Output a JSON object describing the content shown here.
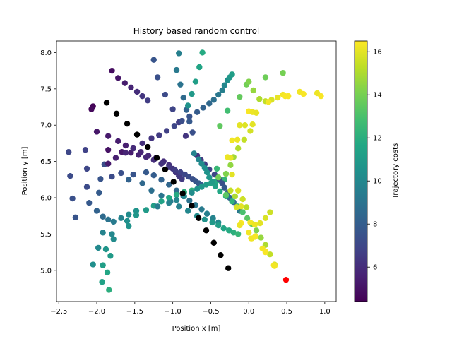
{
  "chart_data": {
    "type": "scatter",
    "title": "History based random control",
    "xlabel": "Position x [m]",
    "ylabel": "Position y [m]",
    "xlim": [
      -2.53,
      1.15
    ],
    "ylim": [
      4.57,
      8.16
    ],
    "xticks": [
      "−2.5",
      "−2.0",
      "−1.5",
      "−1.0",
      "−0.5",
      "0.0",
      "0.5",
      "1.0"
    ],
    "xtick_values": [
      -2.5,
      -2.0,
      -1.5,
      -1.0,
      -0.5,
      0.0,
      0.5,
      1.0
    ],
    "yticks": [
      "5.0",
      "5.5",
      "6.0",
      "6.5",
      "7.0",
      "7.5",
      "8.0"
    ],
    "ytick_values": [
      5.0,
      5.5,
      6.0,
      6.5,
      7.0,
      7.5,
      8.0
    ],
    "grid": false,
    "colorbar": {
      "label": "Trajectory costs",
      "colormap": "viridis",
      "range": [
        4.4,
        16.5
      ],
      "ticks": [
        "6",
        "8",
        "10",
        "12",
        "14",
        "16"
      ],
      "tick_values": [
        6,
        8,
        10,
        12,
        14,
        16
      ]
    },
    "colors": {
      "history": "#000000",
      "current": "#ff0000"
    },
    "current_position": {
      "x": 0.49,
      "y": 4.87
    },
    "history": [
      [
        -1.87,
        7.31
      ],
      [
        -1.74,
        7.16
      ],
      [
        -1.6,
        7.02
      ],
      [
        -1.47,
        6.87
      ],
      [
        -1.33,
        6.7
      ],
      [
        -1.21,
        6.55
      ],
      [
        -1.1,
        6.39
      ],
      [
        -0.99,
        6.22
      ],
      [
        -0.87,
        6.06
      ],
      [
        -0.75,
        5.89
      ],
      [
        -0.66,
        5.72
      ],
      [
        -0.56,
        5.55
      ],
      [
        -0.46,
        5.38
      ],
      [
        -0.37,
        5.21
      ],
      [
        -0.27,
        5.03
      ]
    ],
    "trajectories": [
      {
        "x": [
          -1.8,
          -1.72,
          -1.63,
          -1.55,
          -1.47,
          -1.4,
          -1.33
        ],
        "y": [
          7.75,
          7.65,
          7.58,
          7.52,
          7.46,
          7.4,
          7.34
        ],
        "costs": [
          4.8,
          5.1,
          5.4,
          5.7,
          6.0,
          6.3,
          6.6
        ]
      },
      {
        "x": [
          -2.05,
          -2.07
        ],
        "y": [
          7.26,
          7.22
        ],
        "costs": [
          4.5,
          4.7
        ]
      },
      {
        "x": [
          -1.25,
          -1.2,
          -1.1,
          -1.0,
          -0.92,
          -0.83
        ],
        "y": [
          7.9,
          7.66,
          7.42,
          7.22,
          7.04,
          6.85
        ],
        "costs": [
          7.6,
          7.4,
          7.2,
          6.9,
          6.6,
          6.3
        ]
      },
      {
        "x": [
          -0.92,
          -0.95,
          -0.9,
          -0.86,
          -0.82,
          -0.78,
          -0.74
        ],
        "y": [
          7.99,
          7.76,
          7.56,
          7.38,
          7.21,
          7.05,
          6.9
        ],
        "costs": [
          9.6,
          9.3,
          9.0,
          8.6,
          8.2,
          7.8,
          7.4
        ]
      },
      {
        "x": [
          -0.61,
          -0.65,
          -0.7,
          -0.75,
          -0.8
        ],
        "y": [
          8.0,
          7.8,
          7.6,
          7.43,
          7.27
        ],
        "costs": [
          11.8,
          11.5,
          11.2,
          10.9,
          10.6
        ]
      },
      {
        "x": [
          -2.0,
          -1.85,
          -1.72,
          -1.62,
          -1.52,
          -1.42,
          -1.32,
          -1.22,
          -1.12,
          -1.05,
          -1.0,
          -0.96,
          -0.92,
          -0.88
        ],
        "y": [
          6.91,
          6.85,
          6.78,
          6.72,
          6.68,
          6.63,
          6.58,
          6.55,
          6.5,
          6.45,
          6.4,
          6.35,
          6.3,
          6.26
        ],
        "costs": [
          5.2,
          5.3,
          5.4,
          5.5,
          5.6,
          5.7,
          5.8,
          5.9,
          6.0,
          6.1,
          6.2,
          6.3,
          6.4,
          6.5
        ]
      },
      {
        "x": [
          -1.85,
          -1.67,
          -1.55,
          -1.45,
          -1.35,
          -1.25,
          -1.15,
          -1.05,
          -0.97,
          -0.9,
          -0.84,
          -0.79,
          -0.74,
          -0.7,
          -0.66,
          -0.63
        ],
        "y": [
          6.66,
          6.63,
          6.62,
          6.59,
          6.56,
          6.52,
          6.47,
          6.42,
          6.38,
          6.35,
          6.32,
          6.29,
          6.26,
          6.23,
          6.2,
          6.18
        ],
        "costs": [
          5.0,
          5.2,
          5.4,
          5.6,
          5.8,
          6.0,
          6.2,
          6.4,
          6.6,
          6.8,
          7.0,
          7.2,
          7.4,
          7.6,
          7.8,
          8.0
        ]
      },
      {
        "x": [
          -2.37,
          -2.35,
          -2.32,
          -2.28
        ],
        "y": [
          6.63,
          6.3,
          5.99,
          5.73
        ],
        "costs": [
          7.0,
          7.2,
          7.4,
          7.6
        ]
      },
      {
        "x": [
          -2.15,
          -2.13,
          -2.13
        ],
        "y": [
          6.66,
          6.4,
          6.15
        ],
        "costs": [
          6.8,
          7.0,
          7.2
        ]
      },
      {
        "x": [
          -1.9,
          -1.95,
          -1.97
        ],
        "y": [
          6.46,
          6.26,
          6.07
        ],
        "costs": [
          7.3,
          7.6,
          7.9
        ]
      },
      {
        "x": [
          -1.8,
          -1.68
        ],
        "y": [
          6.29,
          6.34
        ],
        "costs": [
          7.2,
          7.4
        ]
      },
      {
        "x": [
          -1.52,
          -1.35,
          -1.25,
          -1.15,
          -1.05,
          -0.95,
          -0.86,
          -0.78,
          -0.7,
          -0.62,
          -0.55,
          -0.47,
          -0.4
        ],
        "y": [
          6.32,
          6.35,
          6.31,
          6.25,
          6.18,
          6.1,
          6.02,
          5.96,
          5.9,
          5.84,
          5.78,
          5.72,
          5.66
        ],
        "costs": [
          7.6,
          7.8,
          8.0,
          8.2,
          8.4,
          8.6,
          8.8,
          9.0,
          9.2,
          9.4,
          9.6,
          9.8,
          10.0
        ]
      },
      {
        "x": [
          -1.58,
          -1.4,
          -1.28,
          -1.15,
          -1.03,
          -0.92,
          -0.8,
          -0.68,
          -0.58,
          -0.48,
          -0.4,
          -0.33,
          -0.26,
          -0.2,
          -0.14
        ],
        "y": [
          6.25,
          6.2,
          6.1,
          6.03,
          5.95,
          5.88,
          5.82,
          5.75,
          5.7,
          5.66,
          5.62,
          5.58,
          5.55,
          5.52,
          5.5
        ],
        "costs": [
          8.2,
          8.5,
          8.8,
          9.1,
          9.4,
          9.7,
          10.0,
          10.3,
          10.6,
          10.9,
          11.2,
          11.5,
          11.8,
          12.1,
          12.4
        ]
      },
      {
        "x": [
          -2.1,
          -2.0,
          -1.92,
          -1.85,
          -1.78,
          -1.68,
          -1.58,
          -1.48
        ],
        "y": [
          5.93,
          5.82,
          5.74,
          5.7,
          5.67,
          5.72,
          5.77,
          5.82
        ],
        "costs": [
          7.8,
          8.2,
          8.6,
          9.0,
          9.4,
          9.8,
          10.2,
          10.6
        ]
      },
      {
        "x": [
          -1.8,
          -1.78,
          -1.6,
          -1.58,
          -1.48,
          -1.35,
          -1.25,
          -1.15,
          -1.05,
          -0.95,
          -0.85,
          -0.75
        ],
        "y": [
          5.5,
          5.43,
          5.68,
          5.61,
          5.76,
          5.83,
          5.89,
          5.95,
          6.0,
          6.04,
          6.08,
          6.1
        ],
        "costs": [
          10.0,
          10.2,
          10.4,
          10.6,
          10.8,
          11.0,
          11.2,
          11.4,
          11.6,
          11.8,
          12.0,
          12.2
        ]
      },
      {
        "x": [
          -1.92,
          -1.98,
          -2.05,
          -1.88,
          -1.82
        ],
        "y": [
          5.52,
          5.31,
          5.08,
          5.29,
          5.2
        ],
        "costs": [
          9.8,
          10.1,
          10.4,
          10.7,
          11.0
        ]
      },
      {
        "x": [
          -1.92,
          -1.86,
          -1.84,
          -1.93
        ],
        "y": [
          5.07,
          4.97,
          4.73,
          4.84
        ],
        "costs": [
          11.2,
          11.6,
          12.0,
          11.4
        ]
      },
      {
        "x": [
          -1.85,
          -1.75,
          -1.62,
          -1.52,
          -1.4,
          -1.28,
          -1.18,
          -1.08,
          -0.98,
          -0.88,
          -0.78,
          -0.68,
          -0.6,
          -0.52,
          -0.46,
          -0.4,
          -0.35,
          -0.32,
          -0.28,
          -0.25,
          -0.22
        ],
        "y": [
          6.47,
          6.55,
          6.62,
          6.68,
          6.75,
          6.82,
          6.86,
          6.92,
          6.99,
          7.06,
          7.12,
          7.18,
          7.24,
          7.3,
          7.35,
          7.42,
          7.48,
          7.55,
          7.62,
          7.66,
          7.7
        ],
        "costs": [
          5.3,
          5.5,
          5.7,
          5.9,
          6.1,
          6.3,
          6.5,
          6.7,
          7.0,
          7.3,
          7.6,
          7.9,
          8.2,
          8.5,
          8.8,
          9.2,
          9.6,
          10.0,
          10.4,
          10.8,
          11.2
        ]
      },
      {
        "x": [
          -1.2,
          -1.05,
          -0.95,
          -0.85,
          -0.75,
          -0.68,
          -0.62,
          -0.56,
          -0.5,
          -0.44,
          -0.38,
          -0.32
        ],
        "y": [
          5.88,
          5.93,
          5.97,
          6.02,
          6.07,
          6.12,
          6.15,
          6.18,
          6.2,
          6.22,
          6.24,
          6.25
        ],
        "costs": [
          9.5,
          9.7,
          9.9,
          10.1,
          10.3,
          10.5,
          10.8,
          11.1,
          11.4,
          11.7,
          12.0,
          12.3
        ]
      },
      {
        "x": [
          -0.68,
          -0.63,
          -0.58,
          -0.52,
          -0.45,
          -0.39,
          -0.35,
          -0.32,
          -0.28,
          -0.25,
          -0.2,
          -0.16,
          -0.12
        ],
        "y": [
          6.58,
          6.52,
          6.46,
          6.39,
          6.32,
          6.26,
          6.2,
          6.14,
          6.07,
          6.0,
          5.94,
          5.88,
          5.82
        ],
        "costs": [
          6.2,
          6.4,
          6.6,
          6.8,
          7.0,
          7.2,
          7.4,
          7.7,
          8.0,
          8.3,
          8.6,
          8.9,
          9.2
        ]
      },
      {
        "x": [
          -0.72,
          -0.66,
          -0.62,
          -0.58,
          -0.55,
          -0.52,
          -0.48,
          -0.44,
          -0.38,
          -0.3,
          -0.22,
          -0.15,
          -0.08,
          -0.02,
          0.04,
          0.1,
          0.16,
          0.22,
          0.28,
          0.34
        ],
        "y": [
          6.61,
          6.53,
          6.47,
          6.41,
          6.35,
          6.28,
          6.22,
          6.16,
          6.09,
          6.02,
          5.95,
          5.88,
          5.8,
          5.72,
          5.64,
          5.55,
          5.45,
          5.35,
          5.22,
          5.08
        ],
        "costs": [
          9.8,
          10.0,
          10.2,
          10.4,
          10.6,
          10.8,
          11.0,
          11.3,
          11.6,
          11.9,
          12.2,
          12.6,
          13.0,
          13.4,
          13.8,
          14.2,
          14.6,
          15.0,
          15.4,
          15.8
        ]
      },
      {
        "x": [
          -0.1,
          -0.12,
          0.0,
          0.04,
          0.08,
          0.18,
          0.22,
          0.34
        ],
        "y": [
          5.65,
          5.62,
          5.52,
          5.44,
          5.46,
          5.3,
          5.25,
          5.06
        ],
        "costs": [
          16.4,
          16.2,
          16.3,
          16.1,
          16.2,
          16.3,
          16.4,
          16.3
        ]
      },
      {
        "x": [
          -0.4,
          -0.3,
          -0.24,
          -0.2,
          -0.14,
          -0.06,
          0.02,
          0.05
        ],
        "y": [
          6.28,
          6.33,
          6.45,
          6.56,
          6.68,
          6.8,
          6.92,
          7.01
        ],
        "costs": [
          13.9,
          14.2,
          14.5,
          14.8,
          15.1,
          15.4,
          15.7,
          16.0
        ]
      },
      {
        "x": [
          -0.28,
          -0.24,
          -0.22,
          -0.15,
          -0.12,
          -0.05,
          0.0,
          0.05,
          0.1
        ],
        "y": [
          6.56,
          6.55,
          6.79,
          6.8,
          7.0,
          7.0,
          7.19,
          7.18,
          7.17
        ],
        "costs": [
          16.2,
          16.1,
          16.3,
          16.2,
          16.0,
          15.9,
          16.4,
          16.2,
          16.1
        ]
      },
      {
        "x": [
          -0.38,
          -0.28,
          -0.22,
          -0.14,
          -0.08,
          -0.03,
          0.02,
          0.08,
          0.15,
          0.22,
          0.28
        ],
        "y": [
          6.99,
          7.2,
          6.32,
          6.1,
          5.98,
          5.87,
          5.66,
          5.63,
          5.65,
          5.72,
          5.8
        ],
        "costs": [
          13.5,
          12.8,
          16.0,
          15.9,
          15.6,
          15.2,
          16.3,
          16.2,
          16.0,
          15.8,
          15.6
        ]
      },
      {
        "x": [
          -0.12,
          -0.03,
          0.0,
          0.06,
          0.14,
          0.22,
          0.3,
          0.38,
          0.45,
          0.52
        ],
        "y": [
          7.39,
          7.56,
          7.6,
          7.48,
          7.36,
          7.33,
          7.35,
          7.38,
          7.42,
          7.4
        ],
        "costs": [
          13.6,
          13.9,
          14.2,
          14.6,
          15.0,
          15.4,
          15.8,
          16.1,
          16.3,
          16.4
        ]
      },
      {
        "x": [
          0.22,
          0.45,
          0.67,
          0.72,
          0.9,
          0.95,
          0.26,
          0.48
        ],
        "y": [
          7.66,
          7.72,
          7.46,
          7.43,
          7.44,
          7.4,
          7.32,
          7.4
        ],
        "costs": [
          13.8,
          14.0,
          16.3,
          16.4,
          16.2,
          16.4,
          16.3,
          16.4
        ]
      },
      {
        "x": [
          -0.42,
          -0.3,
          -0.24,
          -0.18,
          -0.16,
          -0.1
        ],
        "y": [
          6.4,
          6.04,
          6.1,
          6.02,
          5.87,
          5.88
        ],
        "costs": [
          12.5,
          13.4,
          15.4,
          15.0,
          15.8,
          16.0
        ]
      },
      {
        "x": [
          0.03,
          0.09,
          0.22,
          0.33
        ],
        "y": [
          5.44,
          5.47,
          5.26,
          5.07
        ],
        "costs": [
          16.3,
          16.4,
          16.4,
          16.3
        ]
      }
    ]
  }
}
